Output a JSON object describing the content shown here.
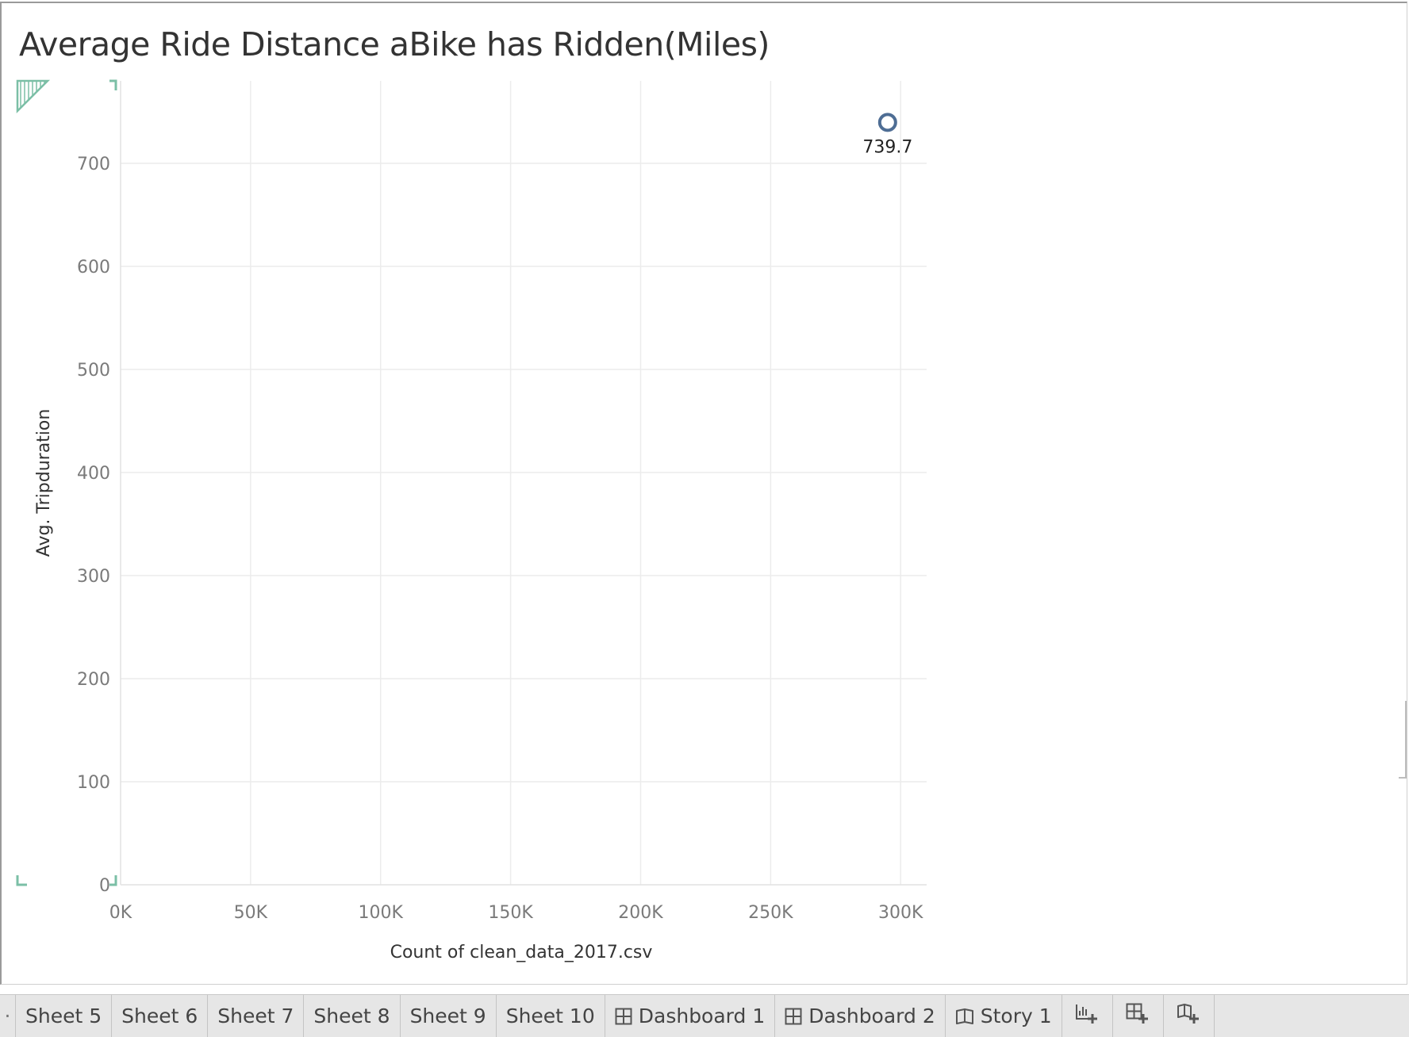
{
  "worksheet": {
    "title": "Average Ride Distance aBike has Ridden(Miles)"
  },
  "chart_data": {
    "type": "scatter",
    "title": "Average Ride Distance aBike has Ridden(Miles)",
    "xlabel": "Count of clean_data_2017.csv",
    "ylabel": "Avg. Tripduration",
    "xlim": [
      0,
      310000
    ],
    "ylim": [
      0,
      780
    ],
    "x_ticks": [
      0,
      50000,
      100000,
      150000,
      200000,
      250000,
      300000
    ],
    "x_tick_labels": [
      "0K",
      "50K",
      "100K",
      "150K",
      "200K",
      "250K",
      "300K"
    ],
    "y_ticks": [
      0,
      100,
      200,
      300,
      400,
      500,
      600,
      700
    ],
    "y_tick_labels": [
      "0",
      "100",
      "200",
      "300",
      "400",
      "500",
      "600",
      "700"
    ],
    "grid": true,
    "points": [
      {
        "x": 295000,
        "y": 739.7,
        "label": "739.7"
      }
    ],
    "mark_color": "#4e6d94",
    "grid_color": "#ececec",
    "accent_color": "#7bbfa6"
  },
  "tabbar": {
    "edge_label": "·",
    "tabs": [
      {
        "label": "Sheet 5",
        "icon": ""
      },
      {
        "label": "Sheet 6",
        "icon": ""
      },
      {
        "label": "Sheet 7",
        "icon": ""
      },
      {
        "label": "Sheet 8",
        "icon": ""
      },
      {
        "label": "Sheet 9",
        "icon": ""
      },
      {
        "label": "Sheet 10",
        "icon": ""
      },
      {
        "label": "Dashboard 1",
        "icon": "dashboard-icon"
      },
      {
        "label": "Dashboard 2",
        "icon": "dashboard-icon"
      },
      {
        "label": "Story 1",
        "icon": "story-icon"
      }
    ],
    "action_icons": [
      "new-worksheet-icon",
      "new-dashboard-icon",
      "new-story-icon"
    ]
  }
}
